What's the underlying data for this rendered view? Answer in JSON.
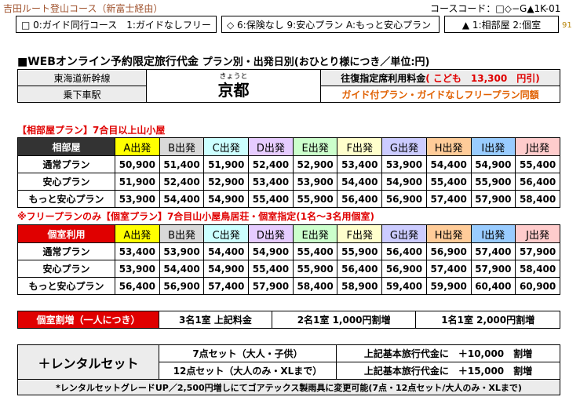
{
  "header": {
    "title": "吉田ルート登山コース（新富士経由）",
    "course_code": "コースコード：□◇−G▲1K-01"
  },
  "options": {
    "guide": "□ 0:ガイド同行コース　1:ガイドなしフリー",
    "insurance": "◇ 6:保険なし 9:安心プラン A:もっと安心プラン",
    "room": "▲ 1:相部屋 2:個室",
    "page_number": "91"
  },
  "section": {
    "title": "■WEBオンライン予約限定旅行代金",
    "subtitle": "プラン別・出発日別(おひとり様につき／単位:円)"
  },
  "info": {
    "line_label": "東海道新幹線",
    "station_label": "乗下車駅",
    "station_ruby": "きょうと",
    "station": "京都",
    "fare_label": "往復指定席利用料金",
    "fare_child": "( こども　13,300　円引)",
    "guide_note": "ガイド付プラン・ガイドなしフリープラン同額"
  },
  "dorm": {
    "label": "【相部屋プラン】7合目以上山小屋",
    "header_label": "相部屋",
    "columns": [
      {
        "label": "A出発",
        "color": "#ffff00"
      },
      {
        "label": "B出発",
        "color": "#d9d9d9"
      },
      {
        "label": "C出発",
        "color": "#ccffff"
      },
      {
        "label": "D出発",
        "color": "#e6ccff"
      },
      {
        "label": "E出発",
        "color": "#ccffcc"
      },
      {
        "label": "F出発",
        "color": "#ffffcc"
      },
      {
        "label": "G出発",
        "color": "#ccccff"
      },
      {
        "label": "H出発",
        "color": "#ffcc99"
      },
      {
        "label": "I出発",
        "color": "#99ccff"
      },
      {
        "label": "J出発",
        "color": "#ffcccc"
      }
    ],
    "rows": [
      {
        "name": "通常プラン",
        "values": [
          "50,900",
          "51,400",
          "51,900",
          "52,400",
          "52,900",
          "53,400",
          "53,900",
          "54,400",
          "54,900",
          "55,400"
        ]
      },
      {
        "name": "安心プラン",
        "values": [
          "51,900",
          "52,400",
          "52,900",
          "53,400",
          "53,900",
          "54,400",
          "54,900",
          "55,400",
          "55,900",
          "56,400"
        ]
      },
      {
        "name": "もっと安心プラン",
        "values": [
          "53,900",
          "54,400",
          "54,900",
          "55,400",
          "55,900",
          "56,400",
          "56,900",
          "57,400",
          "57,900",
          "58,400"
        ]
      }
    ]
  },
  "private": {
    "label": "※フリープランのみ【個室プラン】7合目山小屋鳥居荘・個室指定(1名～3名用個室)",
    "header_label": "個室利用",
    "rows": [
      {
        "name": "通常プラン",
        "values": [
          "53,400",
          "53,900",
          "54,400",
          "54,900",
          "55,400",
          "55,900",
          "56,400",
          "56,900",
          "57,400",
          "57,900"
        ]
      },
      {
        "name": "安心プラン",
        "values": [
          "53,900",
          "54,400",
          "54,900",
          "55,400",
          "55,900",
          "56,400",
          "56,900",
          "57,400",
          "57,900",
          "58,400"
        ]
      },
      {
        "name": "もっと安心プラン",
        "values": [
          "56,400",
          "56,900",
          "57,400",
          "57,900",
          "58,400",
          "58,900",
          "59,400",
          "59,900",
          "60,400",
          "60,900"
        ]
      }
    ]
  },
  "surcharge": {
    "label": "個室割増（一人につき）",
    "col1": "3名1室  上記料金",
    "col2": "2名1室  1,000円割増",
    "col3": "1名1室  2,000円割増"
  },
  "rental": {
    "label": "＋レンタルセット",
    "set7": "7点セット（大人・子供）",
    "set7_price": "上記基本旅行代金に　＋10,000　割増",
    "set12": "12点セット（大人のみ・XLまで）",
    "set12_price": "上記基本旅行代金に　＋15,000　割増",
    "note": "*レンタルセットグレードUP／2,500円増しにてゴアテックス製雨具に変更可能(7点・12点セット/大人のみ・XLまで)"
  }
}
